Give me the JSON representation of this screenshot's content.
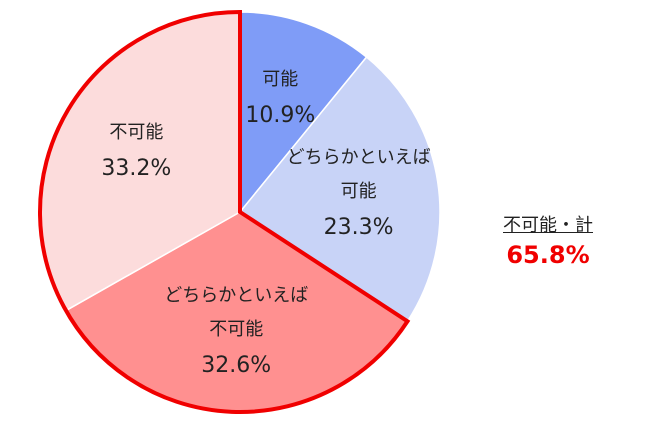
{
  "chart_data": {
    "type": "pie",
    "categories": [
      "可能",
      "どちらかといえば可能",
      "どちらかといえば不可能",
      "不可能"
    ],
    "values": [
      10.9,
      23.3,
      32.6,
      33.2
    ],
    "value_labels": [
      "10.9%",
      "23.3%",
      "32.6%",
      "33.2%"
    ],
    "colors": [
      "#7f9cf7",
      "#c8d3f7",
      "#ff9090",
      "#fcdcdc"
    ],
    "annotation": {
      "label": "不可能・計",
      "text": "65.8%"
    }
  }
}
